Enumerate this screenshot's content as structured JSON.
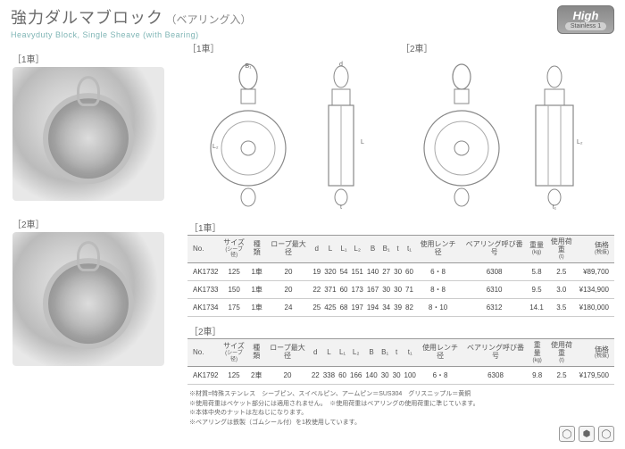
{
  "header": {
    "title_main": "強力ダルマブロック",
    "title_paren": "（ベアリング入）",
    "subtitle": "Heavyduty Block, Single Sheave (with Bearing)",
    "badge": "High",
    "badge_sub": "Stainless 1"
  },
  "labels": {
    "single": "［1車］",
    "double": "［2車］"
  },
  "diagram_labels": [
    "B₁",
    "d",
    "L₁",
    "L",
    "L₂",
    "B",
    "t",
    "t₁",
    "ロープ最大径"
  ],
  "table1": {
    "columns": [
      "No.",
      "サイズ",
      "種類",
      "ロープ最大径",
      "d",
      "L",
      "L₁",
      "L₂",
      "B",
      "B₁",
      "t",
      "t₁",
      "使用レンチ径",
      "ベアリング呼び番号",
      "重量",
      "使用荷重",
      "価格"
    ],
    "col_subs": [
      "",
      "(シーブ径)",
      "",
      "",
      "",
      "",
      "",
      "",
      "",
      "",
      "",
      "",
      "",
      "",
      "(kg)",
      "(t)",
      "(税抜)"
    ],
    "rows": [
      [
        "AK1732",
        "125",
        "1車",
        "20",
        "19",
        "320",
        "54",
        "151",
        "140",
        "27",
        "30",
        "60",
        "6・8",
        "6308",
        "5.8",
        "2.5",
        "¥89,700"
      ],
      [
        "AK1733",
        "150",
        "1車",
        "20",
        "22",
        "371",
        "60",
        "173",
        "167",
        "30",
        "30",
        "71",
        "8・8",
        "6310",
        "9.5",
        "3.0",
        "¥134,900"
      ],
      [
        "AK1734",
        "175",
        "1車",
        "24",
        "25",
        "425",
        "68",
        "197",
        "194",
        "34",
        "39",
        "82",
        "8・10",
        "6312",
        "14.1",
        "3.5",
        "¥180,000"
      ]
    ]
  },
  "table2": {
    "columns": [
      "No.",
      "サイズ",
      "種類",
      "ロープ最大径",
      "d",
      "L",
      "L₁",
      "L₂",
      "B",
      "B₁",
      "t",
      "t₁",
      "使用レンチ径",
      "ベアリング呼び番号",
      "重量",
      "使用荷重",
      "価格"
    ],
    "col_subs": [
      "",
      "(シーブ径)",
      "",
      "",
      "",
      "",
      "",
      "",
      "",
      "",
      "",
      "",
      "",
      "",
      "(kg)",
      "(t)",
      "(税抜)"
    ],
    "rows": [
      [
        "AK1792",
        "125",
        "2車",
        "20",
        "22",
        "338",
        "60",
        "166",
        "140",
        "30",
        "30",
        "100",
        "6・8",
        "6308",
        "9.8",
        "2.5",
        "¥179,500"
      ]
    ]
  },
  "notes": [
    "※材質=特殊ステンレス　シーブピン、スイベルピン、アームピン＝SUS304　グリスニップル＝黄銅",
    "※使用荷重はベケット部分には適用されません。　※使用荷重はベアリングの使用荷重に準じています。",
    "※本体中央のナットは左ねじになります。",
    "※ベアリングは鉄製（ゴムシール付）を1枚使用しています。"
  ],
  "colors": {
    "title": "#6b6b6b",
    "subtitle": "#7fb5b5",
    "line": "#999999",
    "row_border": "#cccccc",
    "bg_header": "#f2f2f2"
  }
}
